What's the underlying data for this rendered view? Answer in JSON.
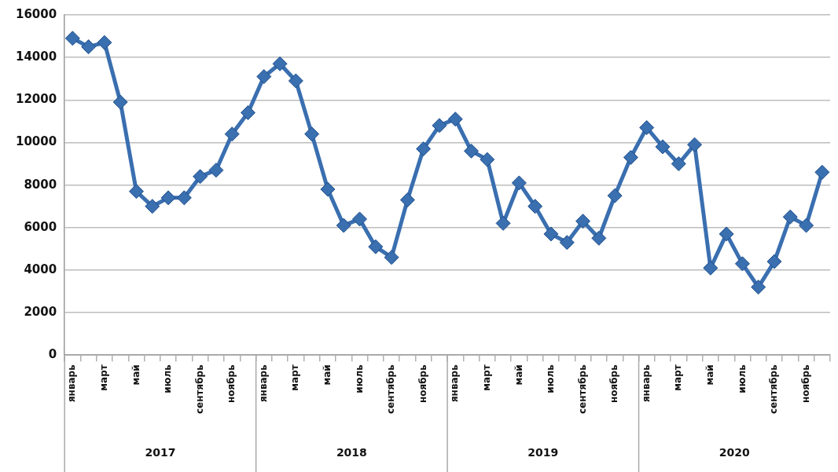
{
  "chart_data": {
    "type": "line",
    "categories": [
      "январь",
      null,
      "март",
      null,
      "май",
      null,
      "июль",
      null,
      "сентябрь",
      null,
      "ноябрь",
      null,
      "январь",
      null,
      "март",
      null,
      "май",
      null,
      "июль",
      null,
      "сентябрь",
      null,
      "ноябрь",
      null,
      "январь",
      null,
      "март",
      null,
      "май",
      null,
      "июль",
      null,
      "сентябрь",
      null,
      "ноябрь",
      null,
      "январь",
      null,
      "март",
      null,
      "май",
      null,
      "июль",
      null,
      "сентябрь",
      null,
      "ноябрь",
      null
    ],
    "series": [
      {
        "color": "#3a6fb0",
        "values": [
          14900,
          14500,
          14700,
          11900,
          7700,
          7000,
          7400,
          7400,
          8400,
          8700,
          10400,
          11400,
          13100,
          13700,
          12900,
          10400,
          7800,
          6100,
          6400,
          5100,
          4600,
          7300,
          9700,
          10800,
          11100,
          9600,
          9200,
          6200,
          8100,
          7000,
          5700,
          5300,
          6300,
          5500,
          7500,
          9300,
          10700,
          9800,
          9000,
          9900,
          4100,
          5700,
          4300,
          3200,
          4400,
          6500,
          6100,
          8600
        ]
      }
    ],
    "annotations": [
      "2017",
      "2018",
      "2019",
      "2020"
    ],
    "ylim": [
      0,
      16000
    ],
    "yticks": [
      0,
      2000,
      4000,
      6000,
      8000,
      10000,
      12000,
      14000,
      16000
    ],
    "grid": "y",
    "legend": false,
    "marker": "diamond",
    "line_style": "solid"
  }
}
